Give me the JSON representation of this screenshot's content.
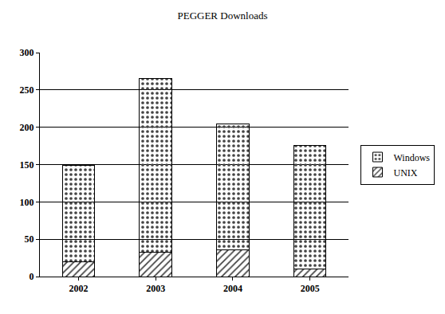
{
  "chart_data": {
    "type": "bar",
    "title": "PEGGER Downloads",
    "categories": [
      "2002",
      "2003",
      "2004",
      "2005"
    ],
    "series": [
      {
        "name": "UNIX",
        "color": "#d8ebe6",
        "values": [
          20,
          33,
          36,
          10
        ]
      },
      {
        "name": "Windows",
        "color": "#ffffff",
        "values": [
          129,
          232,
          168,
          166
        ]
      }
    ],
    "stacked": true,
    "ylim": [
      0,
      300
    ],
    "yticks": [
      0,
      50,
      100,
      150,
      200,
      250,
      300
    ],
    "grid": true,
    "legend": "right"
  }
}
